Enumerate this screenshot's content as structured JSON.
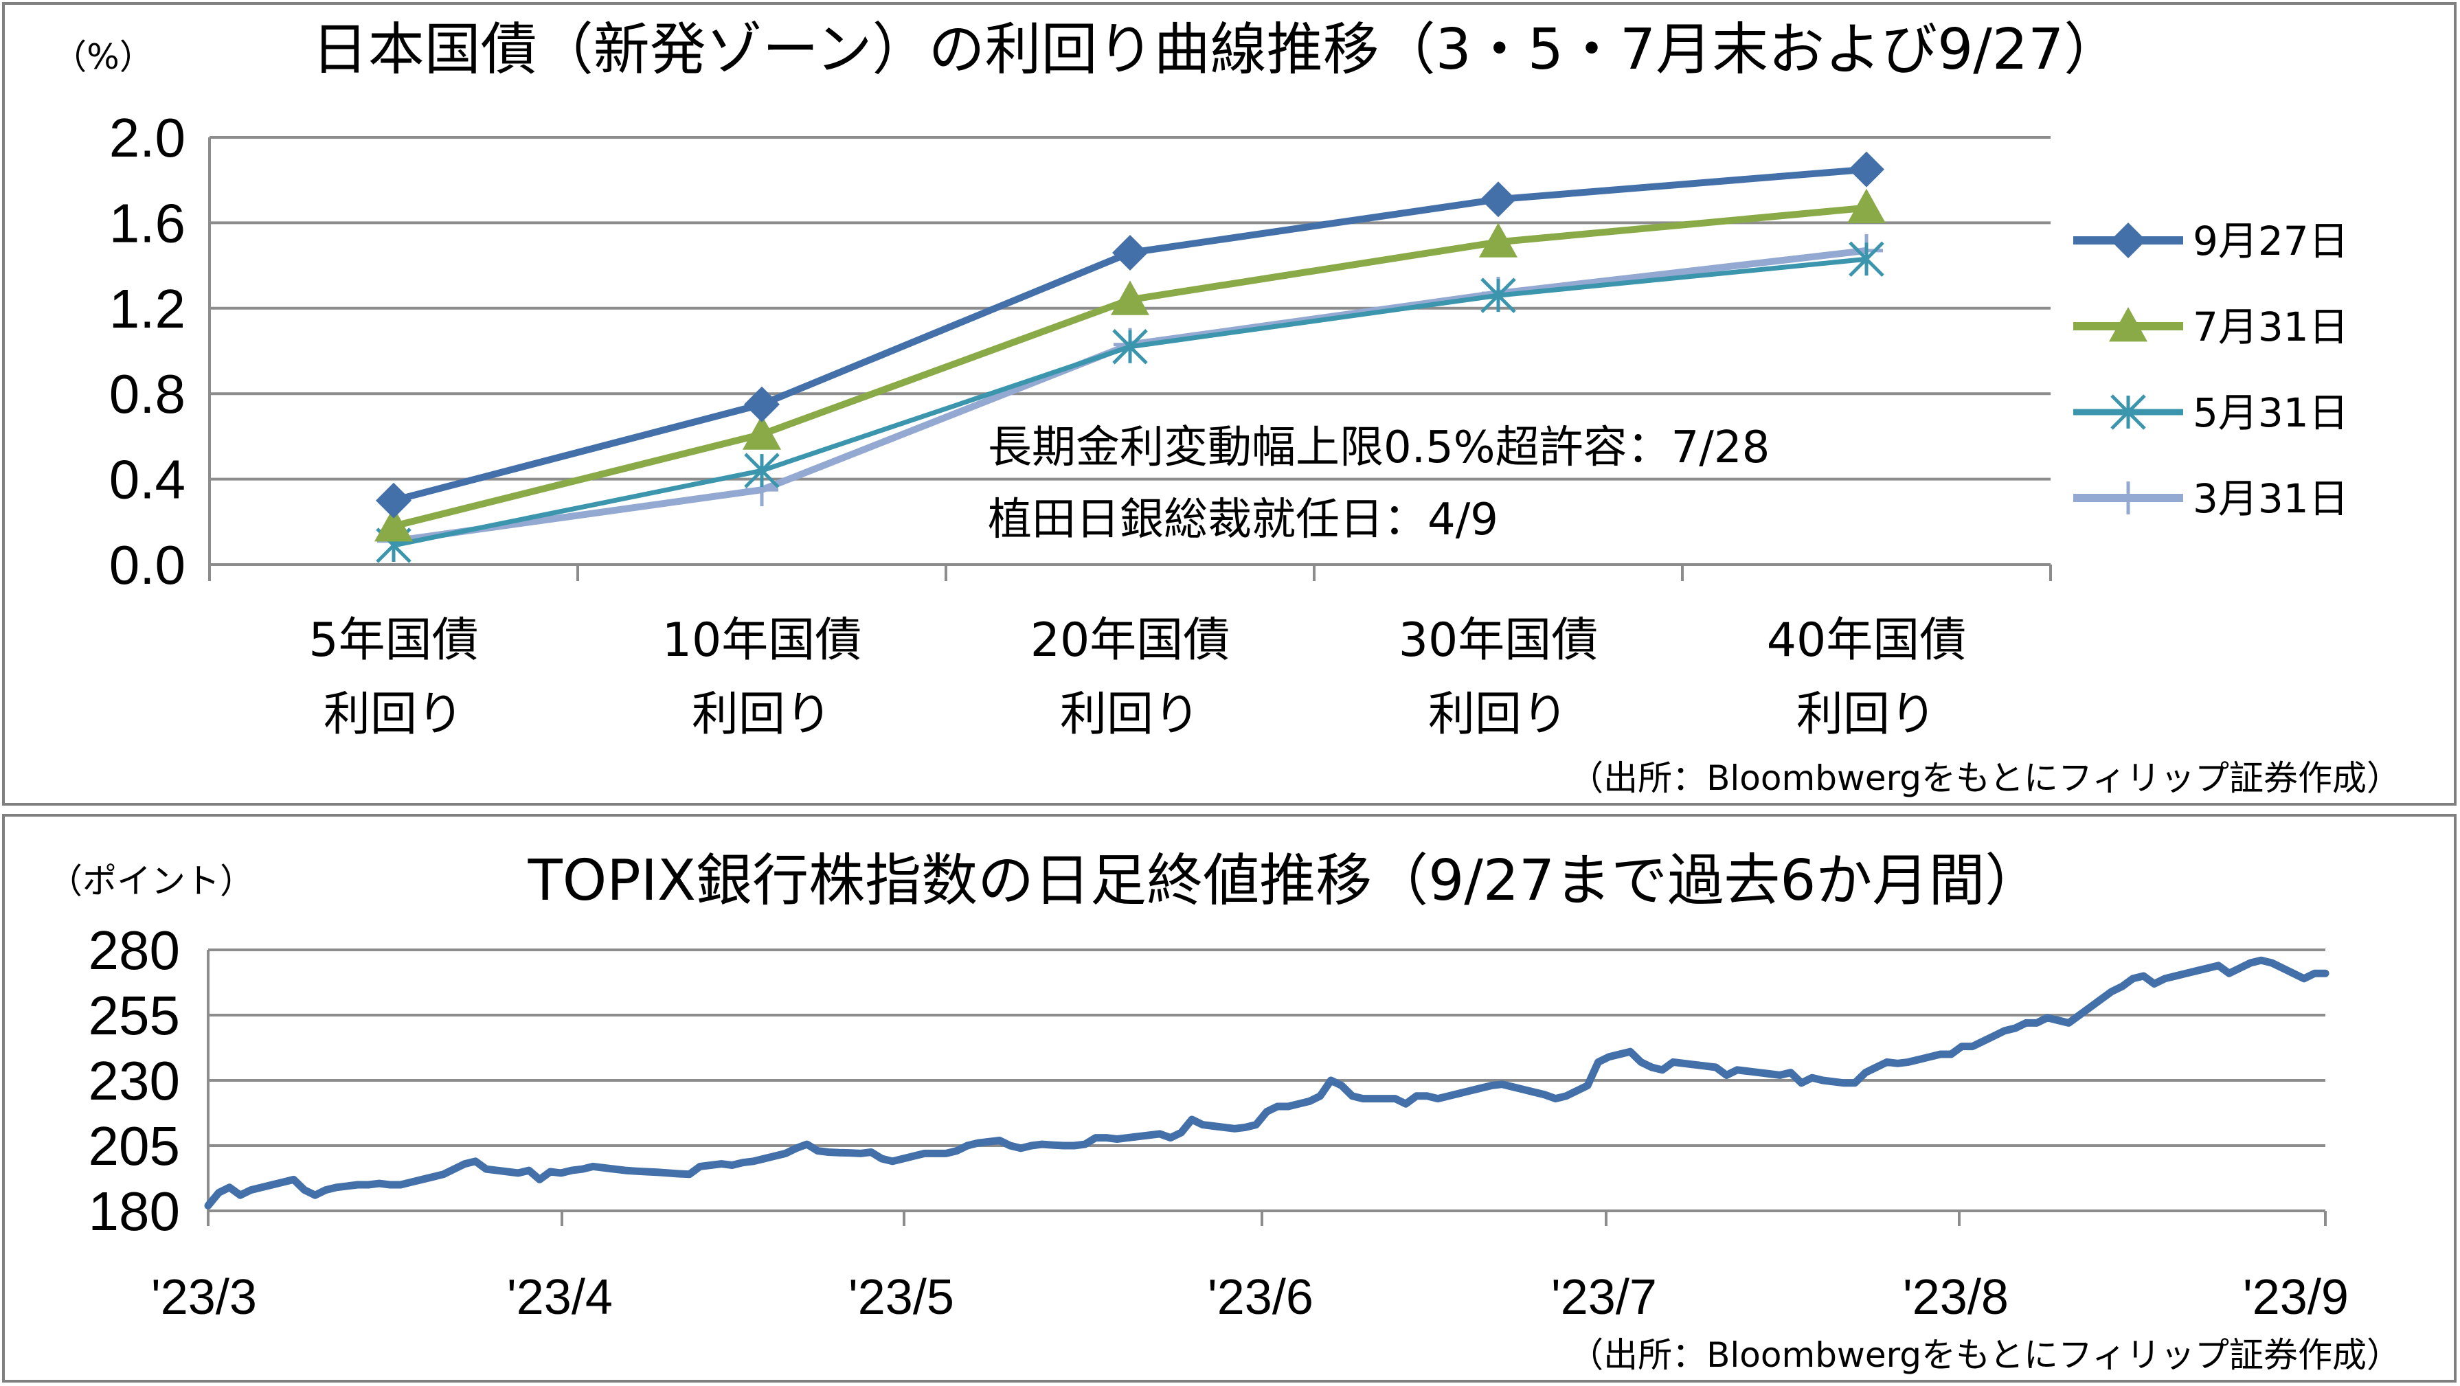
{
  "colors": {
    "s1": "#4470AA",
    "s2": "#8AAA48",
    "s3": "#3A95AD",
    "s4": "#93A9D2",
    "grid": "#8C8C8C",
    "axis": "#8C8C8C"
  },
  "chart_data": [
    {
      "type": "line",
      "title": "日本国債（新発ゾーン）の利回り曲線推移（3・5・7月末および9/27）",
      "ylabel": "（%）",
      "ylim": [
        0,
        2.0
      ],
      "yticks": [
        "0.0",
        "0.4",
        "0.8",
        "1.2",
        "1.6",
        "2.0"
      ],
      "categories": [
        [
          "5年国債",
          "利回り"
        ],
        [
          "10年国債",
          "利回り"
        ],
        [
          "20年国債",
          "利回り"
        ],
        [
          "30年国債",
          "利回り"
        ],
        [
          "40年国債",
          "利回り"
        ]
      ],
      "series": [
        {
          "name": "9月27日",
          "marker": "diamond",
          "values": [
            0.3,
            0.75,
            1.46,
            1.71,
            1.85
          ]
        },
        {
          "name": "7月31日",
          "marker": "triangle",
          "values": [
            0.18,
            0.61,
            1.24,
            1.51,
            1.67
          ]
        },
        {
          "name": "5月31日",
          "marker": "asterisk",
          "values": [
            0.09,
            0.44,
            1.02,
            1.26,
            1.43
          ]
        },
        {
          "name": "3月31日",
          "marker": "plus",
          "values": [
            0.11,
            0.35,
            1.03,
            1.27,
            1.47
          ]
        }
      ],
      "annotations": [
        "長期金利変動幅上限0.5%超許容：7/28",
        "植田日銀総裁就任日：4/9"
      ],
      "legend": "right",
      "grid": true,
      "source": "（出所：Bloombwergをもとにフィリップ証券作成）"
    },
    {
      "type": "line",
      "title": "TOPIX銀行株指数の日足終値推移（9/27まで過去6か月間）",
      "ylabel": "（ポイント）",
      "ylim": [
        180,
        280
      ],
      "yticks": [
        "180",
        "205",
        "230",
        "255",
        "280"
      ],
      "x_labels": [
        "'23/3",
        "'23/4",
        "'23/5",
        "'23/6",
        "'23/7",
        "'23/8",
        "'23/9"
      ],
      "grid": true,
      "series": [
        {
          "values": [
            182,
            187,
            189,
            186,
            188,
            189,
            190,
            191,
            192,
            188,
            186,
            188,
            189,
            189.5,
            190,
            190,
            190.5,
            190,
            190,
            191,
            192,
            193,
            194,
            196,
            198,
            199,
            196,
            195.5,
            195,
            194.5,
            195.5,
            192,
            195,
            194.5,
            195.5,
            196,
            197,
            196.5,
            196,
            195.5,
            195.2,
            195,
            194.8,
            194.5,
            194.2,
            194,
            197,
            197.5,
            198,
            197.5,
            198.5,
            199,
            200,
            201,
            202,
            204,
            205.5,
            203,
            202.5,
            202.3,
            202.2,
            202,
            202.5,
            200,
            199,
            200,
            201,
            202,
            202,
            202,
            203,
            205,
            206,
            206.5,
            207,
            205,
            204,
            205,
            205.5,
            205.2,
            205,
            205,
            205.5,
            208,
            208,
            207.5,
            208,
            208.5,
            209,
            209.5,
            208,
            210,
            215,
            213,
            212.5,
            212,
            211.5,
            212,
            213,
            218,
            220,
            220,
            221,
            222,
            224,
            230,
            228,
            224,
            223,
            223,
            223,
            223,
            221,
            224,
            224,
            223,
            224,
            225,
            226,
            227,
            228,
            228.5,
            227.5,
            226.5,
            225.5,
            224.5,
            223,
            224,
            226,
            228,
            237,
            239,
            240,
            241,
            237,
            235,
            234,
            237,
            236.5,
            236,
            235.5,
            235,
            232,
            234,
            233.5,
            233,
            232.5,
            232,
            233,
            229,
            231,
            230,
            229.5,
            229,
            229,
            233,
            235,
            237,
            236.5,
            237,
            238,
            239,
            240,
            240,
            243,
            243,
            245,
            247,
            249,
            250,
            252,
            252,
            254,
            253,
            252,
            255,
            258,
            261,
            264,
            266,
            269,
            270,
            267,
            269,
            270,
            271,
            272,
            273,
            274,
            271,
            273,
            275,
            276,
            275,
            273,
            271,
            269,
            271,
            271
          ]
        }
      ],
      "source": "（出所：Bloombwergをもとにフィリップ証券作成）"
    }
  ]
}
